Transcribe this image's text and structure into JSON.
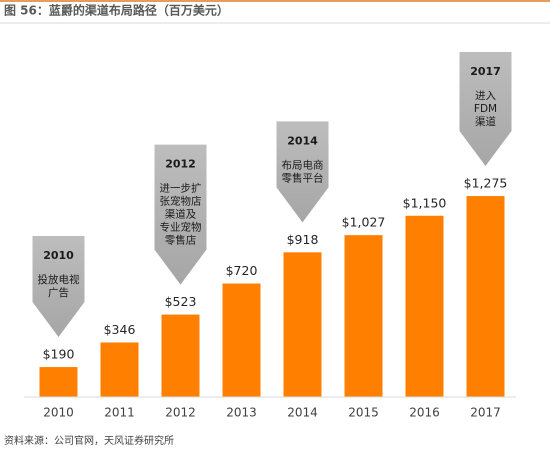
{
  "chart_data": {
    "type": "bar",
    "title": "图 56：蓝爵的渠道布局路径（百万美元）",
    "categories": [
      "2010",
      "2011",
      "2012",
      "2013",
      "2014",
      "2015",
      "2016",
      "2017"
    ],
    "values": [
      190,
      346,
      523,
      720,
      918,
      1027,
      1150,
      1275
    ],
    "value_labels": [
      "$190",
      "$346",
      "$523",
      "$720",
      "$918",
      "$1,027",
      "$1,150",
      "$1,275"
    ],
    "color": "#ff7f00",
    "annotations": [
      {
        "label": "2010",
        "lines": [
          "投放电视",
          "广告"
        ]
      },
      {
        "label": "2012",
        "lines": [
          "进一步扩",
          "张宠物店",
          "渠道及",
          "专业宠物",
          "零售店"
        ]
      },
      {
        "label": "2014",
        "lines": [
          "布局电商",
          "零售平台"
        ]
      },
      {
        "label": "2017",
        "lines": [
          "进入",
          "FDM",
          "渠道"
        ]
      }
    ],
    "source": "资料来源：公司官网，天风证券研究所"
  }
}
